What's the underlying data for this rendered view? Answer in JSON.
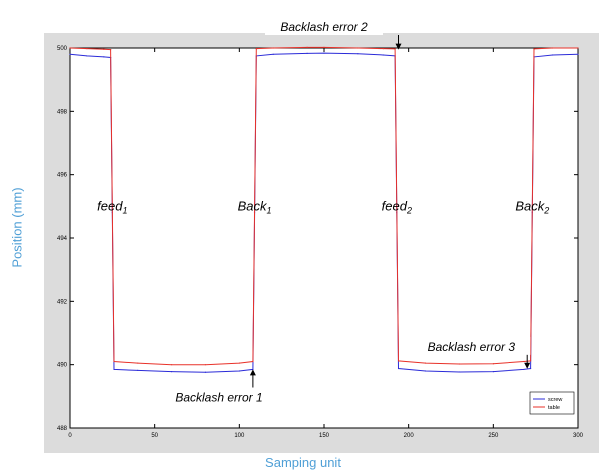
{
  "chart_data": {
    "type": "line",
    "title": "",
    "xlabel": "Samping unit",
    "ylabel": "Position (mm)",
    "xlim": [
      0,
      300
    ],
    "ylim": [
      488,
      500
    ],
    "x_ticks": [
      0,
      50,
      100,
      150,
      200,
      250,
      300
    ],
    "y_ticks": [
      488,
      490,
      492,
      494,
      496,
      498,
      500
    ],
    "x_tick_labels": [
      "0",
      "50",
      "100",
      "150",
      "200",
      "250",
      "300"
    ],
    "y_tick_labels": [
      "488",
      "490",
      "492",
      "494",
      "496",
      "498",
      "500"
    ],
    "legend_position": "bottom-right",
    "series": [
      {
        "name": "screw",
        "color": "#2b2bd8",
        "x": [
          0,
          10,
          20,
          24,
          25,
          26,
          40,
          60,
          80,
          100,
          108,
          109,
          110,
          120,
          140,
          150,
          170,
          185,
          192,
          193,
          194,
          210,
          230,
          250,
          268,
          272,
          273,
          274,
          285,
          300
        ],
        "y": [
          499.8,
          499.75,
          499.72,
          499.7,
          494.8,
          489.85,
          489.82,
          489.78,
          489.76,
          489.8,
          489.85,
          494.8,
          499.75,
          499.8,
          499.83,
          499.84,
          499.82,
          499.78,
          499.75,
          494.8,
          489.88,
          489.8,
          489.77,
          489.78,
          489.85,
          489.88,
          494.8,
          499.72,
          499.78,
          499.8
        ]
      },
      {
        "name": "table",
        "color": "#e8322a",
        "x": [
          0,
          10,
          20,
          24,
          25,
          26,
          40,
          60,
          80,
          100,
          108,
          109,
          110,
          120,
          140,
          150,
          170,
          185,
          192,
          193,
          194,
          210,
          230,
          250,
          268,
          272,
          273,
          274,
          285,
          300
        ],
        "y": [
          500.0,
          499.98,
          499.96,
          499.95,
          495.0,
          490.1,
          490.05,
          490.0,
          490.0,
          490.05,
          490.1,
          495.0,
          499.98,
          500.0,
          500.02,
          500.02,
          500.0,
          499.98,
          499.97,
          495.0,
          490.12,
          490.05,
          490.02,
          490.03,
          490.1,
          490.12,
          495.0,
          499.97,
          500.0,
          500.0
        ]
      }
    ],
    "annotations": [
      {
        "text": "Backlash error 2",
        "x": 150,
        "y": 500.6,
        "arrow_x": 194,
        "arrow_y": 499.95
      },
      {
        "text": "Backlash error 1",
        "x": 88,
        "y": 488.9,
        "arrow_x": 108,
        "arrow_y": 489.85
      },
      {
        "text": "Backlash error 3",
        "x": 237,
        "y": 490.5,
        "arrow_x": 270,
        "arrow_y": 489.87
      }
    ],
    "phase_labels": [
      {
        "base": "feed",
        "sub": "1",
        "x": 25,
        "y": 495.0
      },
      {
        "base": "Back",
        "sub": "1",
        "x": 109,
        "y": 495.0
      },
      {
        "base": "feed",
        "sub": "2",
        "x": 193,
        "y": 495.0
      },
      {
        "base": "Back",
        "sub": "2",
        "x": 273,
        "y": 495.0
      }
    ]
  }
}
